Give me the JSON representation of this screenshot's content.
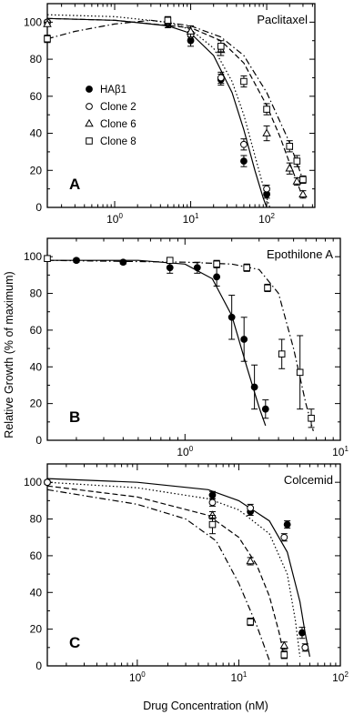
{
  "figure": {
    "ylabel": "Relative Growth (% of maximum)",
    "xlabel": "Drug Concentration (nM)"
  },
  "chart_data": [
    {
      "type": "scatter",
      "panel": "A",
      "title": "Paclitaxel",
      "xscale": "log",
      "xlim": [
        0.13,
        430
      ],
      "ylim": [
        0,
        110
      ],
      "yticks": [
        0,
        20,
        40,
        60,
        80,
        100
      ],
      "xticks": [
        {
          "value": 1,
          "base": "10",
          "exp": "0"
        },
        {
          "value": 10,
          "base": "10",
          "exp": "1"
        },
        {
          "value": 100,
          "base": "10",
          "exp": "2"
        }
      ],
      "legend": {
        "position": "middle-left",
        "entries": [
          "HAβ1",
          "Clone 2",
          "Clone 6",
          "Clone 8"
        ]
      },
      "series": [
        {
          "name": "HAβ1",
          "marker": "filled-circle",
          "line": "solid",
          "x": [
            0.13,
            5,
            10,
            25,
            50,
            100
          ],
          "y": [
            100,
            99,
            90,
            69,
            25,
            7
          ],
          "err": [
            1,
            2,
            3,
            3,
            3,
            2
          ],
          "curve_x": [
            0.13,
            1,
            5,
            10,
            20,
            35,
            50,
            70,
            90,
            100
          ],
          "curve_y": [
            102,
            101,
            98,
            94,
            82,
            62,
            42,
            20,
            5,
            0
          ]
        },
        {
          "name": "Clone 2",
          "marker": "open-circle",
          "line": "dotted",
          "x": [
            0.13,
            5,
            10,
            25,
            50,
            100
          ],
          "y": [
            100,
            100,
            93,
            70,
            34,
            10
          ],
          "err": [
            1,
            2,
            2,
            3,
            3,
            2
          ],
          "curve_x": [
            0.13,
            1,
            5,
            10,
            20,
            35,
            50,
            70,
            95,
            110
          ],
          "curve_y": [
            104,
            103,
            100,
            96,
            86,
            68,
            50,
            28,
            8,
            0
          ]
        },
        {
          "name": "Clone 6",
          "marker": "open-triangle",
          "line": "dashed",
          "x": [
            0.13,
            10,
            25,
            100,
            200,
            250,
            300
          ],
          "y": [
            99,
            95,
            85,
            40,
            21,
            14,
            7
          ],
          "err": [
            1,
            3,
            3,
            4,
            3,
            2,
            2
          ],
          "curve_x": [
            0.13,
            1,
            10,
            25,
            50,
            100,
            150,
            200,
            250,
            300
          ],
          "curve_y": [
            102,
            101,
            97,
            90,
            78,
            55,
            38,
            24,
            14,
            5
          ]
        },
        {
          "name": "Clone 8",
          "marker": "open-square",
          "line": "dash-dot",
          "x": [
            0.13,
            5,
            25,
            50,
            100,
            200,
            250,
            300
          ],
          "y": [
            91,
            101,
            87,
            68,
            53,
            33,
            25,
            15
          ],
          "err": [
            2,
            2,
            3,
            3,
            3,
            3,
            3,
            2
          ],
          "curve_x": [
            0.13,
            0.3,
            1,
            3,
            10,
            25,
            50,
            100,
            200,
            300
          ],
          "curve_y": [
            91,
            95,
            99,
            101,
            98,
            92,
            82,
            62,
            35,
            15
          ]
        }
      ]
    },
    {
      "type": "scatter",
      "panel": "B",
      "title": "Epothilone A",
      "xscale": "log",
      "xlim": [
        0.13,
        10
      ],
      "ylim": [
        0,
        110
      ],
      "yticks": [
        0,
        20,
        40,
        60,
        80,
        100
      ],
      "xticks": [
        {
          "value": 1,
          "base": "10",
          "exp": "0"
        },
        {
          "value": 10,
          "base": "10",
          "exp": "1"
        }
      ],
      "series": [
        {
          "name": "HAβ1",
          "marker": "filled-circle",
          "line": "solid",
          "x": [
            0.2,
            0.4,
            0.8,
            1.2,
            1.6,
            2.0,
            2.4,
            2.8,
            3.3
          ],
          "y": [
            98,
            97,
            94,
            94,
            89,
            67,
            55,
            29,
            17
          ],
          "err": [
            1,
            1,
            3,
            3,
            5,
            12,
            12,
            12,
            5
          ],
          "curve_x": [
            0.13,
            0.5,
            1.0,
            1.5,
            2.0,
            2.5,
            3.0,
            3.3
          ],
          "curve_y": [
            98,
            98,
            96,
            88,
            68,
            40,
            18,
            8
          ]
        },
        {
          "name": "Clone 8",
          "marker": "open-square",
          "line": "dash-dot",
          "x": [
            0.13,
            0.8,
            1.6,
            2.5,
            3.4,
            4.2,
            5.5,
            6.5
          ],
          "y": [
            99,
            98,
            96,
            94,
            83,
            47,
            37,
            12
          ],
          "err": [
            1,
            1,
            2,
            2,
            2,
            8,
            20,
            5
          ],
          "curve_x": [
            0.13,
            1,
            2,
            3,
            4,
            5,
            6,
            6.7
          ],
          "curve_y": [
            98,
            97,
            96,
            93,
            80,
            50,
            20,
            5
          ]
        }
      ]
    },
    {
      "type": "scatter",
      "panel": "C",
      "title": "Colcemid",
      "xscale": "log",
      "xlim": [
        0.13,
        100
      ],
      "ylim": [
        0,
        110
      ],
      "yticks": [
        0,
        20,
        40,
        60,
        80,
        100
      ],
      "xticks": [
        {
          "value": 1,
          "base": "10",
          "exp": "0"
        },
        {
          "value": 10,
          "base": "10",
          "exp": "1"
        },
        {
          "value": 100,
          "base": "10",
          "exp": "2"
        }
      ],
      "series": [
        {
          "name": "HAβ1",
          "marker": "filled-circle",
          "line": "solid",
          "x": [
            0.13,
            5.5,
            13,
            30,
            42
          ],
          "y": [
            100,
            93,
            84,
            77,
            18
          ],
          "err": [
            1,
            2,
            2,
            2,
            3
          ],
          "curve_x": [
            0.13,
            1,
            5,
            10,
            20,
            30,
            40,
            45,
            50
          ],
          "curve_y": [
            102,
            100,
            96,
            90,
            79,
            62,
            35,
            18,
            5
          ]
        },
        {
          "name": "Clone 2",
          "marker": "open-circle",
          "line": "dotted",
          "x": [
            0.13,
            5.5,
            13,
            28,
            45
          ],
          "y": [
            100,
            89,
            86,
            70,
            10
          ],
          "err": [
            1,
            2,
            2,
            2,
            2
          ],
          "curve_x": [
            0.13,
            1,
            5,
            10,
            20,
            30,
            36,
            40
          ],
          "curve_y": [
            100,
            97,
            91,
            85,
            72,
            50,
            25,
            5
          ]
        },
        {
          "name": "Clone 6",
          "marker": "open-triangle",
          "line": "dashed",
          "x": [
            5.5,
            13,
            28
          ],
          "y": [
            82,
            57,
            11
          ],
          "err": [
            2,
            2,
            2
          ],
          "curve_x": [
            0.13,
            1,
            5,
            10,
            15,
            20,
            25,
            28
          ],
          "curve_y": [
            98,
            92,
            82,
            70,
            55,
            38,
            18,
            5
          ]
        },
        {
          "name": "Clone 8",
          "marker": "open-square",
          "line": "dash-dot",
          "x": [
            5.5,
            13,
            28
          ],
          "y": [
            77,
            24,
            6
          ],
          "err": [
            5,
            2,
            2
          ],
          "curve_x": [
            0.13,
            1,
            3,
            6,
            10,
            15,
            18,
            20
          ],
          "curve_y": [
            96,
            88,
            80,
            68,
            45,
            22,
            10,
            3
          ]
        }
      ]
    }
  ]
}
